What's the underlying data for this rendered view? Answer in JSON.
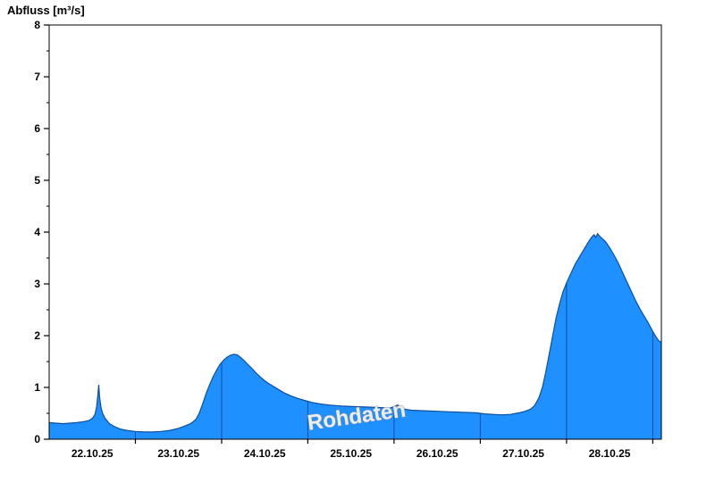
{
  "chart_data": {
    "type": "area",
    "title": "Abfluss [m³/s]",
    "watermark": "Rohdaten",
    "ylabel": "Abfluss [m³/s]",
    "xlabel": "",
    "ylim": [
      0,
      8
    ],
    "yticks": [
      0,
      1,
      2,
      3,
      4,
      5,
      6,
      7,
      8
    ],
    "y_minor_step": 0.5,
    "xlim_days": [
      0,
      7.1
    ],
    "x_tick_labels": [
      "22.10.25",
      "23.10.25",
      "24.10.25",
      "25.10.25",
      "26.10.25",
      "27.10.25",
      "28.10.25"
    ],
    "x_label_positions_days": [
      0.5,
      1.5,
      2.5,
      3.5,
      4.5,
      5.5,
      6.5
    ],
    "day_boundaries_days": [
      1,
      2,
      3,
      4,
      5,
      6,
      7
    ],
    "legend": "none",
    "grid": "day-boundary vertical lines visible inside filled area only",
    "colors": {
      "fill": "#1E90FF",
      "line": "#0D4F9E",
      "axis": "#000000",
      "tick_label": "#000000",
      "day_line": "rgba(0,0,30,0.45)",
      "watermark_fill": "#F4F4F4",
      "watermark_outline": "#8F8F8F",
      "background": "#FFFFFF"
    },
    "series": [
      {
        "name": "Abfluss Rohdaten",
        "unit": "m³/s",
        "points": [
          [
            0.0,
            0.32
          ],
          [
            0.08,
            0.31
          ],
          [
            0.16,
            0.3
          ],
          [
            0.24,
            0.31
          ],
          [
            0.32,
            0.32
          ],
          [
            0.4,
            0.34
          ],
          [
            0.46,
            0.36
          ],
          [
            0.5,
            0.4
          ],
          [
            0.53,
            0.47
          ],
          [
            0.55,
            0.62
          ],
          [
            0.565,
            0.85
          ],
          [
            0.575,
            1.05
          ],
          [
            0.585,
            0.82
          ],
          [
            0.6,
            0.62
          ],
          [
            0.62,
            0.5
          ],
          [
            0.65,
            0.4
          ],
          [
            0.7,
            0.3
          ],
          [
            0.75,
            0.25
          ],
          [
            0.82,
            0.2
          ],
          [
            0.9,
            0.17
          ],
          [
            1.0,
            0.15
          ],
          [
            1.1,
            0.14
          ],
          [
            1.2,
            0.14
          ],
          [
            1.3,
            0.15
          ],
          [
            1.4,
            0.17
          ],
          [
            1.5,
            0.21
          ],
          [
            1.58,
            0.26
          ],
          [
            1.64,
            0.3
          ],
          [
            1.7,
            0.38
          ],
          [
            1.74,
            0.5
          ],
          [
            1.78,
            0.68
          ],
          [
            1.82,
            0.88
          ],
          [
            1.86,
            1.05
          ],
          [
            1.9,
            1.2
          ],
          [
            1.94,
            1.33
          ],
          [
            1.98,
            1.44
          ],
          [
            2.02,
            1.52
          ],
          [
            2.06,
            1.58
          ],
          [
            2.1,
            1.62
          ],
          [
            2.14,
            1.64
          ],
          [
            2.18,
            1.63
          ],
          [
            2.22,
            1.58
          ],
          [
            2.26,
            1.52
          ],
          [
            2.3,
            1.45
          ],
          [
            2.35,
            1.37
          ],
          [
            2.4,
            1.28
          ],
          [
            2.45,
            1.2
          ],
          [
            2.5,
            1.13
          ],
          [
            2.55,
            1.07
          ],
          [
            2.6,
            1.02
          ],
          [
            2.66,
            0.96
          ],
          [
            2.72,
            0.9
          ],
          [
            2.8,
            0.84
          ],
          [
            2.88,
            0.79
          ],
          [
            2.96,
            0.75
          ],
          [
            3.05,
            0.71
          ],
          [
            3.15,
            0.68
          ],
          [
            3.25,
            0.66
          ],
          [
            3.4,
            0.64
          ],
          [
            3.55,
            0.63
          ],
          [
            3.7,
            0.62
          ],
          [
            3.85,
            0.61
          ],
          [
            3.95,
            0.6
          ],
          [
            4.0,
            0.63
          ],
          [
            4.04,
            0.66
          ],
          [
            4.08,
            0.63
          ],
          [
            4.12,
            0.58
          ],
          [
            4.2,
            0.56
          ],
          [
            4.35,
            0.55
          ],
          [
            4.5,
            0.54
          ],
          [
            4.65,
            0.53
          ],
          [
            4.8,
            0.52
          ],
          [
            4.95,
            0.51
          ],
          [
            5.05,
            0.49
          ],
          [
            5.15,
            0.48
          ],
          [
            5.25,
            0.47
          ],
          [
            5.35,
            0.48
          ],
          [
            5.45,
            0.51
          ],
          [
            5.52,
            0.54
          ],
          [
            5.58,
            0.58
          ],
          [
            5.63,
            0.65
          ],
          [
            5.68,
            0.8
          ],
          [
            5.72,
            1.0
          ],
          [
            5.76,
            1.3
          ],
          [
            5.8,
            1.65
          ],
          [
            5.84,
            2.0
          ],
          [
            5.88,
            2.35
          ],
          [
            5.92,
            2.62
          ],
          [
            5.96,
            2.85
          ],
          [
            6.0,
            3.02
          ],
          [
            6.05,
            3.2
          ],
          [
            6.1,
            3.38
          ],
          [
            6.15,
            3.52
          ],
          [
            6.2,
            3.66
          ],
          [
            6.25,
            3.8
          ],
          [
            6.29,
            3.9
          ],
          [
            6.32,
            3.95
          ],
          [
            6.34,
            3.9
          ],
          [
            6.36,
            3.97
          ],
          [
            6.38,
            3.93
          ],
          [
            6.41,
            3.88
          ],
          [
            6.45,
            3.82
          ],
          [
            6.5,
            3.7
          ],
          [
            6.55,
            3.56
          ],
          [
            6.6,
            3.4
          ],
          [
            6.65,
            3.22
          ],
          [
            6.7,
            3.04
          ],
          [
            6.75,
            2.86
          ],
          [
            6.8,
            2.68
          ],
          [
            6.85,
            2.52
          ],
          [
            6.9,
            2.38
          ],
          [
            6.95,
            2.24
          ],
          [
            7.0,
            2.08
          ],
          [
            7.04,
            1.97
          ],
          [
            7.07,
            1.9
          ],
          [
            7.1,
            1.87
          ]
        ]
      }
    ]
  }
}
